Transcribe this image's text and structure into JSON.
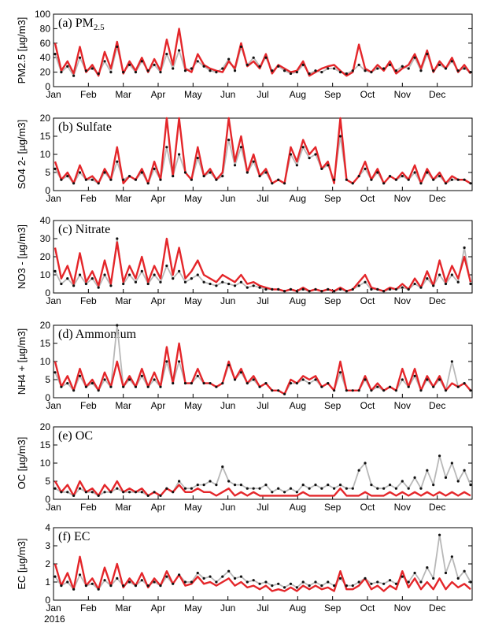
{
  "chart_data": [
    {
      "type": "line",
      "panel_label": "(a) PM",
      "panel_label_sub": "2.5",
      "ylabel": "PM2.5 [µg/m3]",
      "ylim": [
        0,
        100
      ],
      "yticks": [
        0,
        20,
        40,
        60,
        80,
        100
      ],
      "colors": {
        "observed": "#b8b8b8",
        "observed_points": "#111111",
        "model": "#e4262a"
      },
      "series": [
        {
          "values": [
            60,
            22,
            35,
            18,
            55,
            20,
            30,
            15,
            48,
            25,
            62,
            18,
            35,
            22,
            40,
            20,
            38,
            22,
            65,
            30,
            80,
            25,
            20,
            45,
            30,
            25,
            22,
            20,
            35,
            25,
            60,
            28,
            35,
            25,
            45,
            18,
            30,
            25,
            20,
            22,
            35,
            15,
            20,
            25,
            28,
            30,
            22,
            15,
            20,
            58,
            25,
            20,
            30,
            22,
            35,
            18,
            25,
            30,
            45,
            25,
            50,
            20,
            35,
            25,
            40,
            20,
            30,
            18
          ]
        },
        {
          "values": [
            45,
            20,
            28,
            15,
            40,
            22,
            25,
            18,
            35,
            20,
            55,
            20,
            30,
            20,
            35,
            22,
            30,
            20,
            45,
            25,
            50,
            22,
            25,
            35,
            28,
            22,
            20,
            25,
            38,
            22,
            55,
            30,
            40,
            28,
            40,
            22,
            28,
            22,
            18,
            20,
            30,
            18,
            22,
            20,
            25,
            25,
            20,
            18,
            22,
            30,
            22,
            20,
            25,
            25,
            30,
            22,
            28,
            25,
            40,
            22,
            45,
            22,
            30,
            25,
            35,
            22,
            25,
            20
          ]
        }
      ]
    },
    {
      "type": "line",
      "panel_label": "(b) Sulfate",
      "ylabel": "SO4 2- [µg/m3]",
      "ylim": [
        0,
        20
      ],
      "yticks": [
        0,
        5,
        10,
        15,
        20
      ],
      "series": [
        {
          "values": [
            8,
            3,
            5,
            2,
            7,
            3,
            4,
            2,
            6,
            3,
            12,
            2,
            4,
            3,
            6,
            2,
            8,
            3,
            20,
            4,
            20,
            5,
            3,
            12,
            4,
            6,
            3,
            5,
            20,
            8,
            15,
            5,
            10,
            4,
            6,
            2,
            3,
            2,
            12,
            8,
            14,
            10,
            12,
            6,
            8,
            2,
            20,
            3,
            2,
            4,
            8,
            3,
            6,
            2,
            4,
            3,
            5,
            3,
            7,
            2,
            6,
            3,
            5,
            2,
            4,
            3,
            3,
            2
          ]
        },
        {
          "values": [
            6,
            3,
            4,
            2,
            5,
            3,
            3,
            2,
            5,
            3,
            8,
            3,
            4,
            3,
            5,
            2,
            6,
            3,
            12,
            4,
            10,
            5,
            3,
            9,
            4,
            5,
            3,
            4,
            14,
            7,
            12,
            5,
            8,
            4,
            5,
            2,
            3,
            2,
            10,
            7,
            12,
            9,
            10,
            6,
            7,
            3,
            15,
            3,
            2,
            4,
            6,
            3,
            5,
            2,
            4,
            3,
            4,
            3,
            5,
            2,
            5,
            3,
            4,
            2,
            3,
            3,
            3,
            2
          ]
        }
      ]
    },
    {
      "type": "line",
      "panel_label": "(c) Nitrate",
      "ylabel": "NO3 - [µg/m3]",
      "ylim": [
        0,
        40
      ],
      "yticks": [
        0,
        10,
        20,
        30,
        40
      ],
      "series": [
        {
          "values": [
            25,
            8,
            15,
            5,
            22,
            6,
            12,
            4,
            18,
            5,
            28,
            6,
            15,
            8,
            20,
            6,
            15,
            8,
            30,
            10,
            25,
            8,
            12,
            18,
            10,
            8,
            6,
            10,
            8,
            6,
            10,
            5,
            6,
            4,
            3,
            2,
            2,
            1,
            2,
            1,
            3,
            1,
            2,
            1,
            2,
            1,
            3,
            1,
            2,
            6,
            10,
            3,
            2,
            1,
            3,
            2,
            5,
            2,
            8,
            3,
            12,
            4,
            18,
            6,
            15,
            8,
            20,
            6
          ]
        },
        {
          "values": [
            12,
            5,
            8,
            4,
            10,
            5,
            8,
            3,
            10,
            4,
            30,
            5,
            10,
            6,
            12,
            5,
            10,
            6,
            15,
            8,
            12,
            6,
            8,
            10,
            6,
            5,
            4,
            6,
            5,
            4,
            6,
            3,
            4,
            3,
            2,
            2,
            2,
            1,
            2,
            1,
            2,
            1,
            2,
            1,
            2,
            1,
            2,
            1,
            2,
            4,
            6,
            2,
            2,
            1,
            2,
            2,
            3,
            2,
            5,
            3,
            8,
            4,
            10,
            5,
            10,
            6,
            25,
            5
          ]
        }
      ]
    },
    {
      "type": "line",
      "panel_label": "(d) Ammonium",
      "ylabel": "NH4 + [µg/m3]",
      "ylim": [
        0,
        20
      ],
      "yticks": [
        0,
        5,
        10,
        15,
        20
      ],
      "series": [
        {
          "values": [
            10,
            3,
            6,
            2,
            8,
            3,
            5,
            2,
            7,
            3,
            10,
            3,
            6,
            3,
            8,
            3,
            7,
            3,
            14,
            4,
            15,
            4,
            4,
            8,
            4,
            4,
            3,
            4,
            10,
            5,
            8,
            4,
            6,
            3,
            4,
            2,
            2,
            1,
            5,
            4,
            6,
            5,
            6,
            3,
            4,
            2,
            10,
            2,
            2,
            2,
            6,
            2,
            4,
            2,
            3,
            2,
            8,
            3,
            8,
            2,
            6,
            3,
            6,
            2,
            4,
            3,
            4,
            2
          ]
        },
        {
          "values": [
            7,
            3,
            4,
            2,
            6,
            3,
            4,
            2,
            5,
            3,
            20,
            3,
            5,
            3,
            6,
            3,
            5,
            3,
            10,
            4,
            10,
            4,
            4,
            6,
            4,
            4,
            3,
            4,
            9,
            5,
            7,
            4,
            5,
            3,
            4,
            2,
            2,
            1,
            4,
            4,
            5,
            4,
            5,
            3,
            4,
            2,
            7,
            2,
            2,
            2,
            5,
            2,
            3,
            2,
            3,
            2,
            5,
            3,
            6,
            2,
            5,
            3,
            5,
            2,
            10,
            3,
            4,
            2
          ]
        }
      ]
    },
    {
      "type": "line",
      "panel_label": "(e) OC",
      "ylabel": "OC [µg/m3]",
      "ylim": [
        0,
        20
      ],
      "yticks": [
        0,
        5,
        10,
        15,
        20
      ],
      "series": [
        {
          "values": [
            5,
            2,
            4,
            1,
            5,
            2,
            3,
            1,
            4,
            2,
            5,
            2,
            3,
            2,
            3,
            1,
            2,
            1,
            3,
            2,
            4,
            2,
            2,
            3,
            2,
            2,
            1,
            2,
            3,
            1,
            2,
            1,
            2,
            1,
            1,
            1,
            1,
            1,
            1,
            1,
            2,
            1,
            1,
            1,
            1,
            1,
            3,
            1,
            1,
            1,
            2,
            1,
            1,
            1,
            2,
            1,
            2,
            1,
            2,
            1,
            2,
            1,
            2,
            1,
            2,
            1,
            2,
            1
          ]
        },
        {
          "values": [
            3,
            2,
            2,
            1,
            3,
            2,
            2,
            1,
            2,
            2,
            3,
            2,
            2,
            2,
            2,
            1,
            2,
            1,
            3,
            2,
            5,
            3,
            3,
            4,
            4,
            5,
            4,
            9,
            5,
            4,
            4,
            3,
            3,
            3,
            4,
            2,
            3,
            2,
            3,
            2,
            4,
            3,
            4,
            3,
            4,
            3,
            4,
            3,
            3,
            8,
            10,
            4,
            3,
            3,
            4,
            3,
            5,
            3,
            6,
            3,
            8,
            4,
            12,
            6,
            10,
            5,
            8,
            4
          ]
        }
      ]
    },
    {
      "type": "line",
      "panel_label": "(f) EC",
      "ylabel": "EC [µg/m3]",
      "ylim": [
        0,
        4
      ],
      "yticks": [
        0,
        1,
        2,
        3,
        4
      ],
      "series": [
        {
          "values": [
            2.0,
            0.8,
            1.5,
            0.6,
            2.4,
            0.8,
            1.2,
            0.6,
            1.8,
            0.8,
            2.0,
            0.7,
            1.2,
            0.8,
            1.5,
            0.7,
            1.2,
            0.8,
            1.6,
            0.9,
            1.4,
            0.8,
            0.9,
            1.3,
            0.9,
            1.0,
            0.8,
            1.0,
            1.2,
            0.8,
            1.0,
            0.7,
            0.8,
            0.6,
            0.8,
            0.5,
            0.6,
            0.5,
            0.7,
            0.5,
            0.8,
            0.6,
            0.8,
            0.6,
            0.7,
            0.5,
            1.6,
            0.6,
            0.6,
            0.8,
            1.2,
            0.6,
            0.8,
            0.5,
            0.8,
            0.6,
            1.6,
            0.7,
            1.2,
            0.6,
            1.0,
            0.6,
            1.2,
            0.6,
            1.0,
            0.7,
            0.9,
            0.6
          ]
        },
        {
          "values": [
            1.3,
            0.8,
            1.0,
            0.6,
            1.4,
            0.8,
            0.9,
            0.6,
            1.1,
            0.8,
            1.2,
            0.8,
            1.0,
            0.8,
            1.1,
            0.8,
            1.0,
            0.8,
            1.3,
            0.9,
            1.4,
            1.0,
            1.0,
            1.5,
            1.2,
            1.3,
            1.0,
            1.3,
            1.6,
            1.2,
            1.3,
            1.0,
            1.1,
            0.9,
            1.0,
            0.8,
            0.9,
            0.7,
            0.9,
            0.7,
            1.0,
            0.8,
            1.0,
            0.8,
            1.0,
            0.8,
            1.2,
            0.8,
            0.8,
            1.0,
            1.2,
            0.9,
            1.0,
            0.9,
            1.1,
            0.9,
            1.3,
            1.0,
            1.5,
            1.0,
            1.8,
            1.2,
            3.6,
            1.5,
            2.4,
            1.2,
            1.6,
            1.0
          ]
        }
      ]
    }
  ],
  "months": [
    "Jan",
    "Feb",
    "Mar",
    "Apr",
    "May",
    "Jun",
    "Jul",
    "Aug",
    "Sep",
    "Oct",
    "Nov",
    "Dec"
  ],
  "year_label": "2016"
}
